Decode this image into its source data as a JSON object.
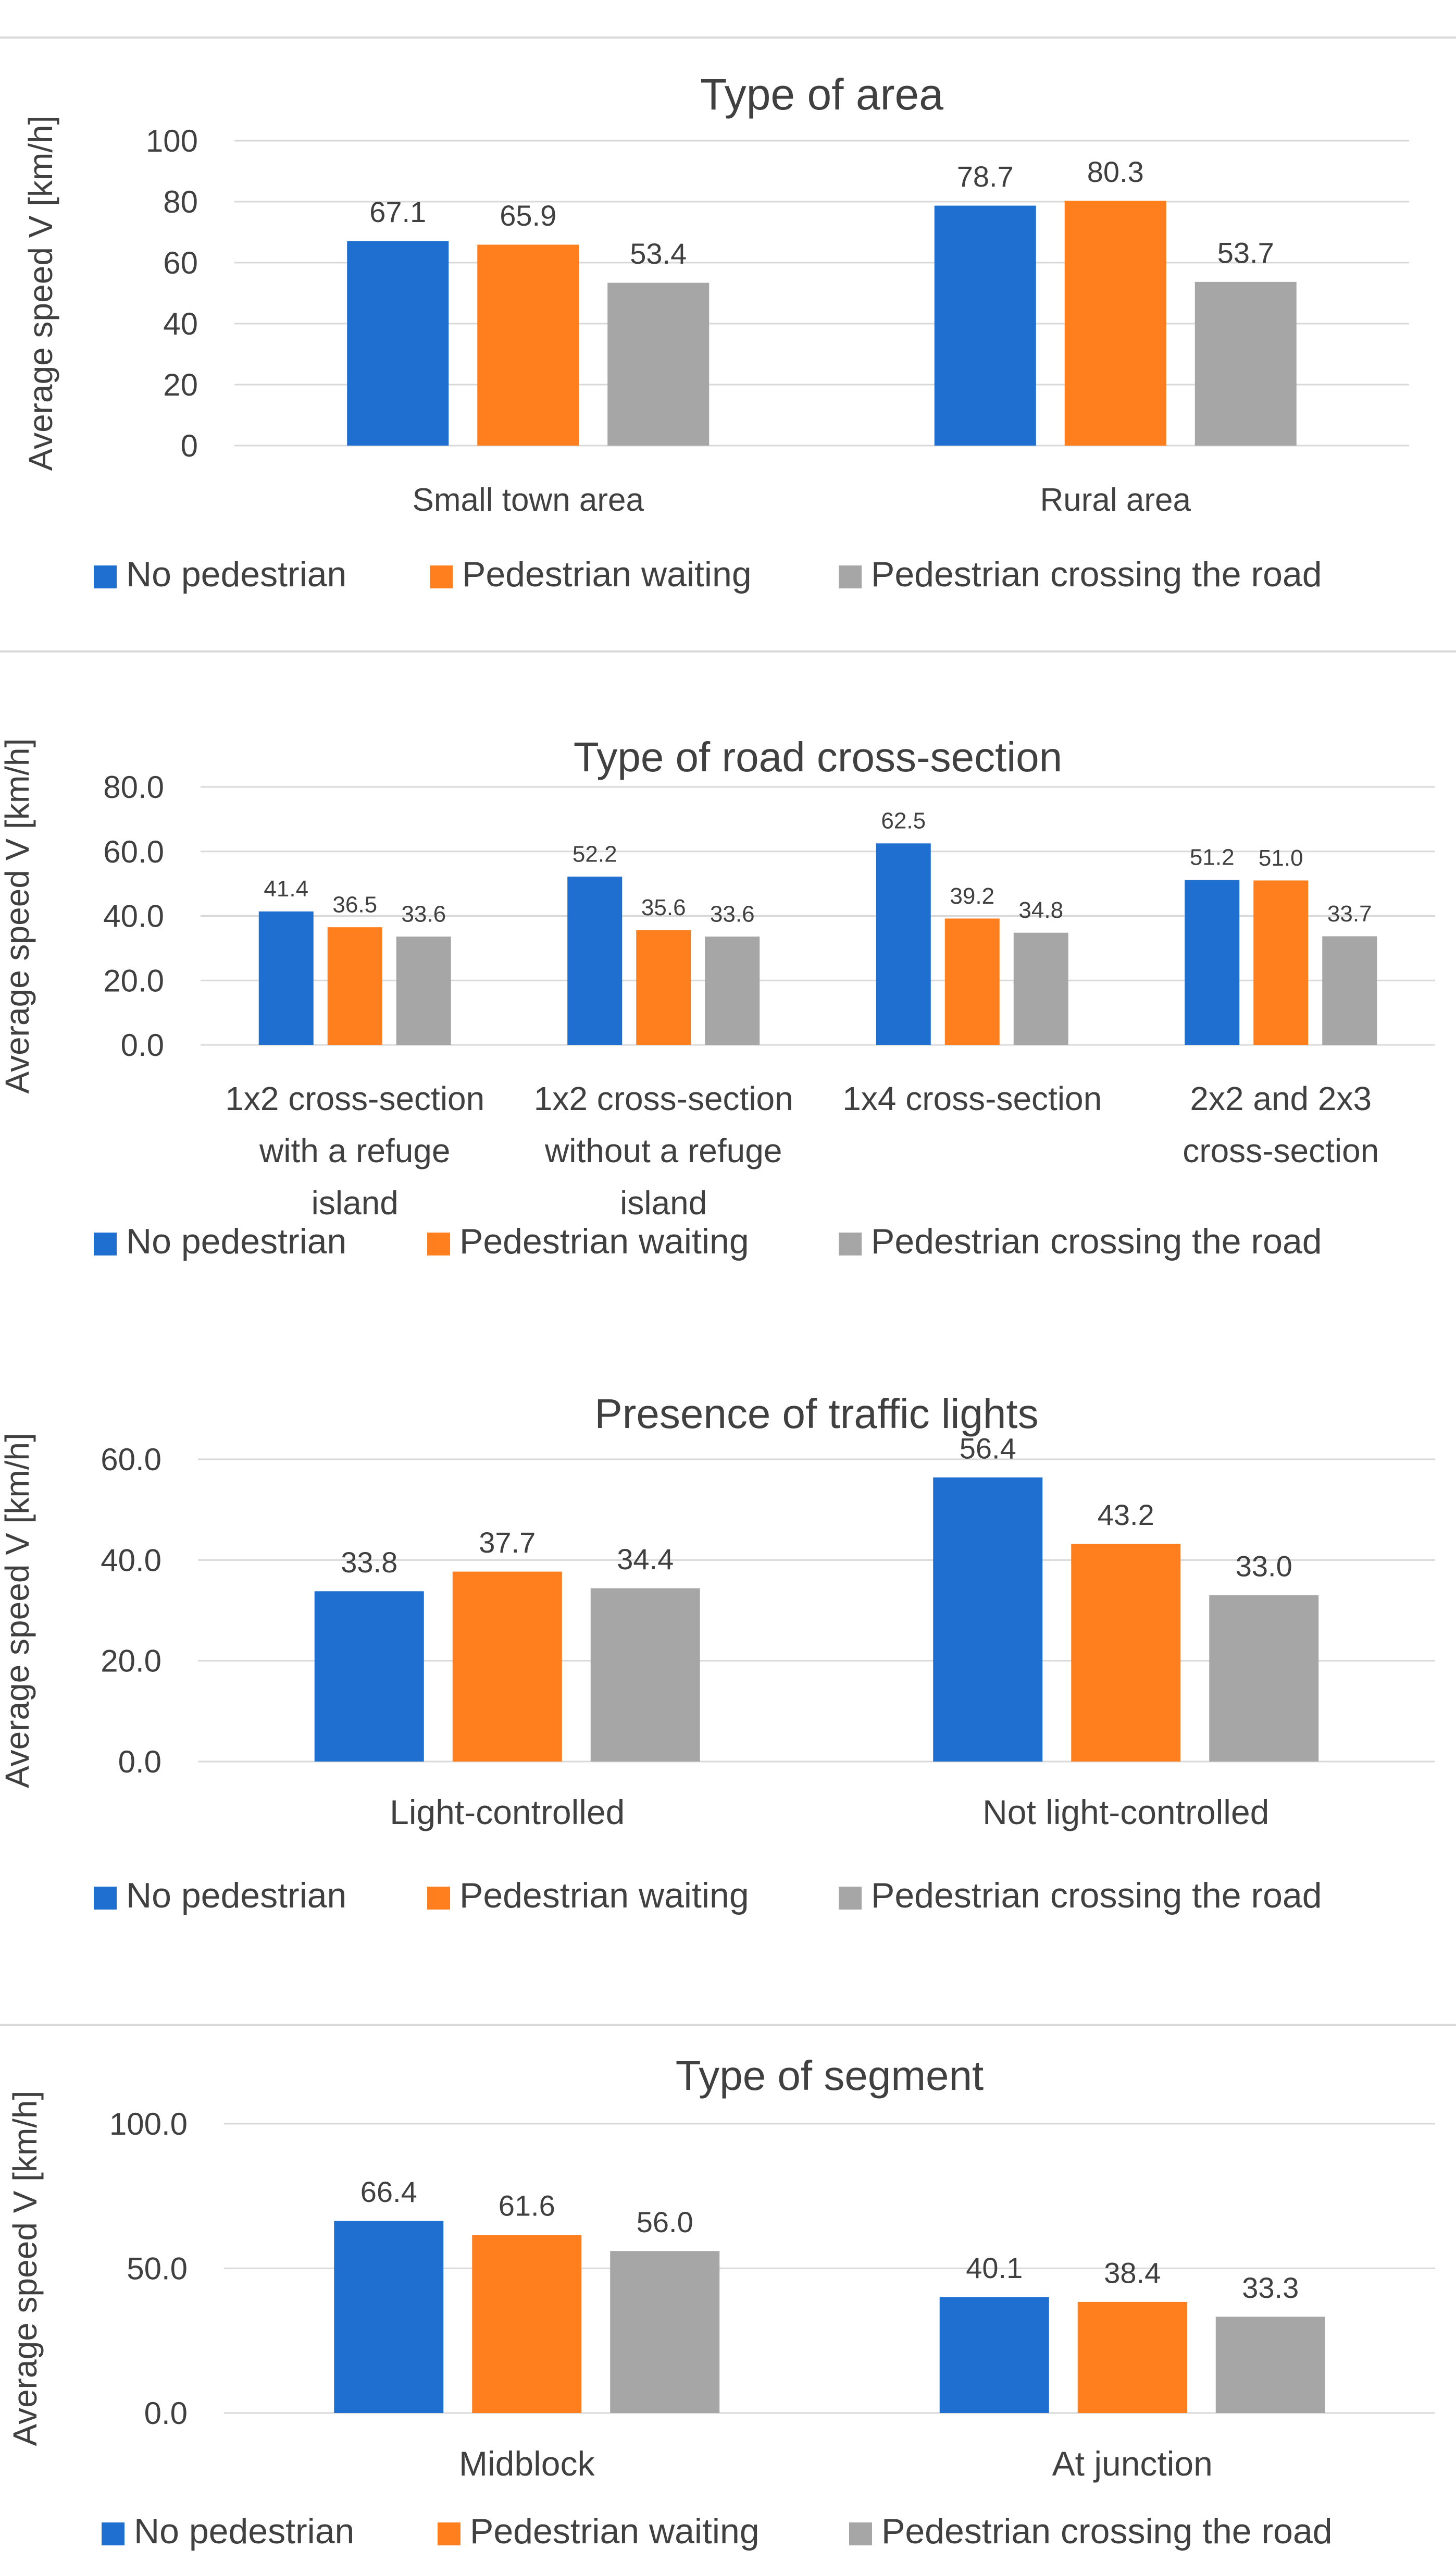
{
  "colors": {
    "no_pedestrian": "#1f6fd0",
    "pedestrian_waiting": "#ff7f1e",
    "pedestrian_crossing": "#a6a6a6",
    "grid": "#d9d9d9",
    "text": "#404040"
  },
  "chart_data": [
    {
      "type": "bar",
      "title": "Type of area",
      "xlabel": "",
      "ylabel": "Average speed V [km/h]",
      "ylim": [
        0,
        100
      ],
      "yticks": [
        "0",
        "20",
        "40",
        "60",
        "80",
        "100"
      ],
      "ytick_values": [
        0,
        20,
        40,
        60,
        80,
        100
      ],
      "grid": true,
      "legend_position": "bottom",
      "categories": [
        [
          "Small town area"
        ],
        [
          "Rural area"
        ]
      ],
      "series": [
        {
          "name": "No pedestrian",
          "values": [
            67.1,
            78.7
          ],
          "labels": [
            "67.1",
            "78.7"
          ]
        },
        {
          "name": "Pedestrian waiting",
          "values": [
            65.9,
            80.3
          ],
          "labels": [
            "65.9",
            "80.3"
          ]
        },
        {
          "name": "Pedestrian crossing the road",
          "values": [
            53.4,
            53.7
          ],
          "labels": [
            "53.4",
            "53.7"
          ]
        }
      ]
    },
    {
      "type": "bar",
      "title": "Type of road cross-section",
      "xlabel": "",
      "ylabel": "Average speed V [km/h]",
      "ylim": [
        0,
        80
      ],
      "yticks": [
        "0.0",
        "20.0",
        "40.0",
        "60.0",
        "80.0"
      ],
      "ytick_values": [
        0,
        20,
        40,
        60,
        80
      ],
      "grid": true,
      "legend_position": "bottom",
      "categories": [
        [
          "1x2 cross-section",
          "with a refuge",
          "island"
        ],
        [
          "1x2 cross-section",
          "without a refuge",
          "island"
        ],
        [
          "1x4 cross-section"
        ],
        [
          "2x2 and 2x3",
          "cross-section"
        ]
      ],
      "series": [
        {
          "name": "No pedestrian",
          "values": [
            41.4,
            52.2,
            62.5,
            51.2
          ],
          "labels": [
            "41.4",
            "52.2",
            "62.5",
            "51.2"
          ]
        },
        {
          "name": "Pedestrian waiting",
          "values": [
            36.5,
            35.6,
            39.2,
            51.0
          ],
          "labels": [
            "36.5",
            "35.6",
            "39.2",
            "51.0"
          ]
        },
        {
          "name": "Pedestrian crossing the road",
          "values": [
            33.6,
            33.6,
            34.8,
            33.7
          ],
          "labels": [
            "33.6",
            "33.6",
            "34.8",
            "33.7"
          ]
        }
      ]
    },
    {
      "type": "bar",
      "title": "Presence of traffic lights",
      "xlabel": "",
      "ylabel": "Average speed V [km/h]",
      "ylim": [
        0,
        60
      ],
      "yticks": [
        "0.0",
        "20.0",
        "40.0",
        "60.0"
      ],
      "ytick_values": [
        0,
        20,
        40,
        60
      ],
      "grid": true,
      "legend_position": "bottom",
      "categories": [
        [
          "Light-controlled"
        ],
        [
          "Not light-controlled"
        ]
      ],
      "series": [
        {
          "name": "No pedestrian",
          "values": [
            33.8,
            56.4
          ],
          "labels": [
            "33.8",
            "56.4"
          ]
        },
        {
          "name": "Pedestrian waiting",
          "values": [
            37.7,
            43.2
          ],
          "labels": [
            "37.7",
            "43.2"
          ]
        },
        {
          "name": "Pedestrian crossing the road",
          "values": [
            34.4,
            33.0
          ],
          "labels": [
            "34.4",
            "33.0"
          ]
        }
      ]
    },
    {
      "type": "bar",
      "title": "Type of segment",
      "xlabel": "",
      "ylabel": "Average speed V [km/h]",
      "ylim": [
        0,
        100
      ],
      "yticks": [
        "0.0",
        "50.0",
        "100.0"
      ],
      "ytick_values": [
        0,
        50,
        100
      ],
      "grid": true,
      "legend_position": "bottom",
      "categories": [
        [
          "Midblock"
        ],
        [
          "At junction"
        ]
      ],
      "series": [
        {
          "name": "No pedestrian",
          "values": [
            66.4,
            40.1
          ],
          "labels": [
            "66.4",
            "40.1"
          ]
        },
        {
          "name": "Pedestrian waiting",
          "values": [
            61.6,
            38.4
          ],
          "labels": [
            "61.6",
            "38.4"
          ]
        },
        {
          "name": "Pedestrian crossing the road",
          "values": [
            56.0,
            33.3
          ],
          "labels": [
            "56.0",
            "33.3"
          ]
        }
      ]
    }
  ]
}
